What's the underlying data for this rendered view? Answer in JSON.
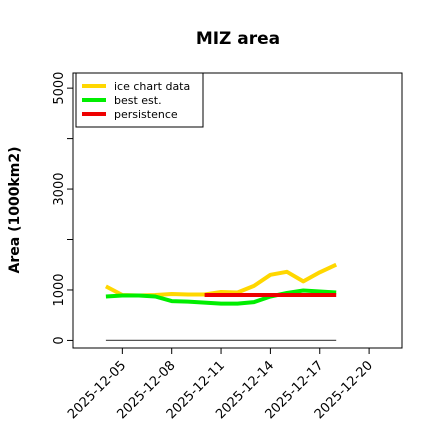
{
  "chart_data": {
    "type": "line",
    "title": "MIZ area",
    "xlabel": "",
    "ylabel": "Area (1000km2)",
    "x_ticks": [
      "2025-12-05",
      "2025-12-08",
      "2025-12-11",
      "2025-12-14",
      "2025-12-17",
      "2025-12-20"
    ],
    "y_ticks": [
      0,
      1000,
      3000,
      5000
    ],
    "xlim": [
      "2025-12-02",
      "2025-12-22"
    ],
    "ylim": [
      -150,
      5300
    ],
    "grid": false,
    "legend_position": "top-left",
    "series": [
      {
        "name": "ice chart data",
        "color": "#FFD700",
        "x": [
          "2025-12-04",
          "2025-12-05",
          "2025-12-06",
          "2025-12-07",
          "2025-12-08",
          "2025-12-09",
          "2025-12-10",
          "2025-12-11",
          "2025-12-12",
          "2025-12-13",
          "2025-12-14",
          "2025-12-15",
          "2025-12-16",
          "2025-12-17",
          "2025-12-18"
        ],
        "values": [
          1070,
          900,
          890,
          900,
          920,
          910,
          910,
          960,
          950,
          1080,
          1300,
          1360,
          1170,
          1350,
          1500
        ]
      },
      {
        "name": "best est.",
        "color": "#00EE00",
        "x": [
          "2025-12-04",
          "2025-12-05",
          "2025-12-06",
          "2025-12-07",
          "2025-12-08",
          "2025-12-09",
          "2025-12-10",
          "2025-12-11",
          "2025-12-12",
          "2025-12-13",
          "2025-12-14",
          "2025-12-15",
          "2025-12-16",
          "2025-12-17",
          "2025-12-18"
        ],
        "values": [
          870,
          890,
          890,
          870,
          780,
          770,
          750,
          730,
          730,
          760,
          870,
          940,
          990,
          970,
          950
        ]
      },
      {
        "name": "persistence",
        "color": "#EE0000",
        "x": [
          "2025-12-10",
          "2025-12-18"
        ],
        "values": [
          900,
          900
        ]
      },
      {
        "name": "",
        "color": "#555555",
        "x": [
          "2025-12-04",
          "2025-12-18"
        ],
        "values": [
          0,
          0
        ]
      }
    ]
  }
}
